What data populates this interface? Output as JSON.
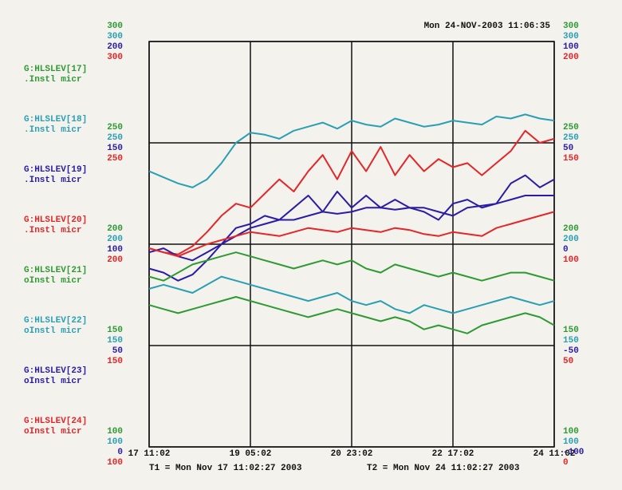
{
  "chart_data": {
    "type": "line",
    "timestamp": "Mon 24-NOV-2003 11:06:35",
    "t1": "T1 = Mon Nov 17 11:02:27 2003",
    "t2": "T2 = Mon Nov 24 11:02:27 2003",
    "xlim": [
      0,
      168
    ],
    "xticks": [
      {
        "value": 0,
        "label": "17 11:02"
      },
      {
        "value": 42,
        "label": "19 05:02"
      },
      {
        "value": 84,
        "label": "20 23:02"
      },
      {
        "value": 126,
        "label": "22 17:02"
      },
      {
        "value": 168,
        "label": "24 11:02"
      }
    ],
    "x": [
      0,
      6,
      12,
      18,
      24,
      30,
      36,
      42,
      48,
      54,
      60,
      66,
      72,
      78,
      84,
      90,
      96,
      102,
      108,
      114,
      120,
      126,
      132,
      138,
      144,
      150,
      156,
      162,
      168
    ],
    "grid": true,
    "series": [
      {
        "name": "G:HLSLEV[17]",
        "description": ".Instl micr",
        "color": "#2f9a34",
        "side": "left",
        "ylim": [
          100,
          300
        ],
        "yticks": [
          100,
          150,
          200,
          250,
          300
        ],
        "values": [
          170,
          168,
          166,
          168,
          170,
          172,
          174,
          172,
          170,
          168,
          166,
          164,
          166,
          168,
          166,
          164,
          162,
          164,
          162,
          158,
          160,
          158,
          156,
          160,
          162,
          164,
          166,
          164,
          160
        ]
      },
      {
        "name": "G:HLSLEV[18]",
        "description": ".Instl micr",
        "color": "#2a9fb4",
        "side": "left",
        "ylim": [
          100,
          300
        ],
        "yticks": [
          100,
          150,
          200,
          250,
          300
        ],
        "values": [
          236,
          233,
          230,
          228,
          232,
          240,
          250,
          255,
          254,
          252,
          256,
          258,
          260,
          257,
          261,
          259,
          258,
          262,
          260,
          258,
          259,
          261,
          260,
          259,
          263,
          262,
          264,
          262,
          261
        ]
      },
      {
        "name": "G:HLSLEV[19]",
        "description": ".Instl micr",
        "color": "#2a1ca6",
        "side": "left",
        "ylim": [
          0,
          200
        ],
        "yticks": [
          0,
          50,
          100,
          150,
          200
        ],
        "values": [
          88,
          86,
          82,
          85,
          92,
          100,
          108,
          110,
          114,
          112,
          118,
          124,
          116,
          126,
          118,
          124,
          118,
          122,
          118,
          116,
          112,
          120,
          122,
          118,
          120,
          130,
          134,
          128,
          132
        ]
      },
      {
        "name": "G:HLSLEV[20]",
        "description": ".Instl micr",
        "color": "#e3262a",
        "side": "left",
        "ylim": [
          100,
          300
        ],
        "yticks": [
          100,
          150,
          200,
          250,
          300
        ],
        "values": [
          198,
          196,
          195,
          199,
          206,
          214,
          220,
          218,
          225,
          232,
          226,
          236,
          244,
          232,
          246,
          236,
          248,
          234,
          244,
          236,
          242,
          238,
          240,
          234,
          240,
          246,
          256,
          250,
          252
        ]
      },
      {
        "name": "G:HLSLEV[21]",
        "description": "oInstl micr",
        "color": "#2f9a34",
        "side": "right",
        "ylim": [
          100,
          300
        ],
        "yticks": [
          100,
          150,
          200,
          250,
          300
        ],
        "values": [
          184,
          182,
          186,
          190,
          192,
          194,
          196,
          194,
          192,
          190,
          188,
          190,
          192,
          190,
          192,
          188,
          186,
          190,
          188,
          186,
          184,
          186,
          184,
          182,
          184,
          186,
          186,
          184,
          182
        ]
      },
      {
        "name": "G:HLSLEV[22]",
        "description": "oInstl micr",
        "color": "#2a9fb4",
        "side": "right",
        "ylim": [
          100,
          300
        ],
        "yticks": [
          100,
          150,
          200,
          250,
          300
        ],
        "values": [
          178,
          180,
          178,
          176,
          180,
          184,
          182,
          180,
          178,
          176,
          174,
          172,
          174,
          176,
          172,
          170,
          172,
          168,
          166,
          170,
          168,
          166,
          168,
          170,
          172,
          174,
          172,
          170,
          172
        ]
      },
      {
        "name": "G:HLSLEV[23]",
        "description": "oInstl micr",
        "color": "#2a1ca6",
        "side": "right",
        "ylim": [
          -100,
          100
        ],
        "yticks": [
          -100,
          -50,
          0,
          50,
          100
        ],
        "values": [
          -4,
          -2,
          -6,
          -8,
          -4,
          0,
          4,
          8,
          10,
          12,
          12,
          14,
          16,
          15,
          16,
          18,
          18,
          17,
          18,
          18,
          16,
          14,
          18,
          19,
          20,
          22,
          24,
          24,
          24
        ]
      },
      {
        "name": "G:HLSLEV[24]",
        "description": "oInstl micr",
        "color": "#e3262a",
        "side": "right",
        "ylim": [
          0,
          200
        ],
        "yticks": [
          0,
          50,
          100,
          150,
          200
        ],
        "values": [
          98,
          96,
          94,
          97,
          100,
          102,
          104,
          106,
          105,
          104,
          106,
          108,
          107,
          106,
          108,
          107,
          106,
          108,
          107,
          105,
          104,
          106,
          105,
          104,
          108,
          110,
          112,
          114,
          116
        ]
      }
    ]
  }
}
